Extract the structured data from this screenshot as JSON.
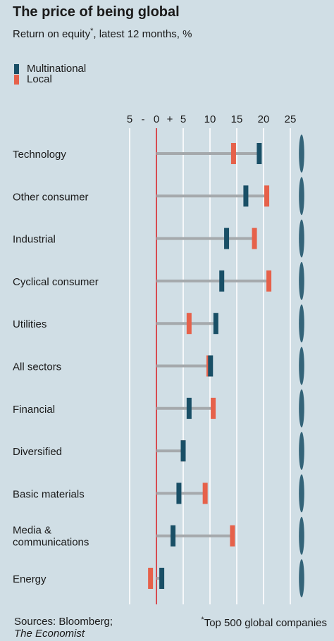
{
  "title": "The price of being global",
  "subtitle": "Return on equity",
  "subtitle_marker": "*",
  "subtitle_suffix": ", latest 12 months, %",
  "colors": {
    "background": "#d0dee5",
    "multinational": "#194f66",
    "local": "#e6614a",
    "zero_line": "#d7262b",
    "connector": "#a5a9ac",
    "gridline": "#ffffff"
  },
  "source": {
    "prefix": "Sources: Bloomberg;",
    "italic": "The Economist"
  },
  "footnote": {
    "marker": "*",
    "text": "Top 500 global companies"
  },
  "chart_data": {
    "type": "dumbbell",
    "tick_labels": [
      "5",
      "-",
      "0",
      "+",
      "5",
      "10",
      "15",
      "20",
      "25"
    ],
    "xlim": [
      -5,
      25
    ],
    "grid": true,
    "legend_position": "top-left",
    "categories": [
      "Technology",
      "Other consumer",
      "Industrial",
      "Cyclical consumer",
      "Utilities",
      "All sectors",
      "Financial",
      "Diversified",
      "Basic materials",
      "Media & communications",
      "Energy"
    ],
    "label_lines": [
      [
        "Technology"
      ],
      [
        "Other consumer"
      ],
      [
        "Industrial"
      ],
      [
        "Cyclical consumer"
      ],
      [
        "Utilities"
      ],
      [
        "All sectors"
      ],
      [
        "Financial"
      ],
      [
        "Diversified"
      ],
      [
        "Basic materials"
      ],
      [
        "Media &",
        "communications"
      ],
      [
        "Energy"
      ]
    ],
    "series": [
      {
        "name": "Multinational",
        "values": [
          19.2,
          16.7,
          13.1,
          12.2,
          11.1,
          10.1,
          6.1,
          5.0,
          4.2,
          3.1,
          1.0
        ]
      },
      {
        "name": "Local",
        "values": [
          14.4,
          20.6,
          18.3,
          21.0,
          6.1,
          9.8,
          10.6,
          5.0,
          9.1,
          14.2,
          -1.1
        ]
      }
    ]
  }
}
